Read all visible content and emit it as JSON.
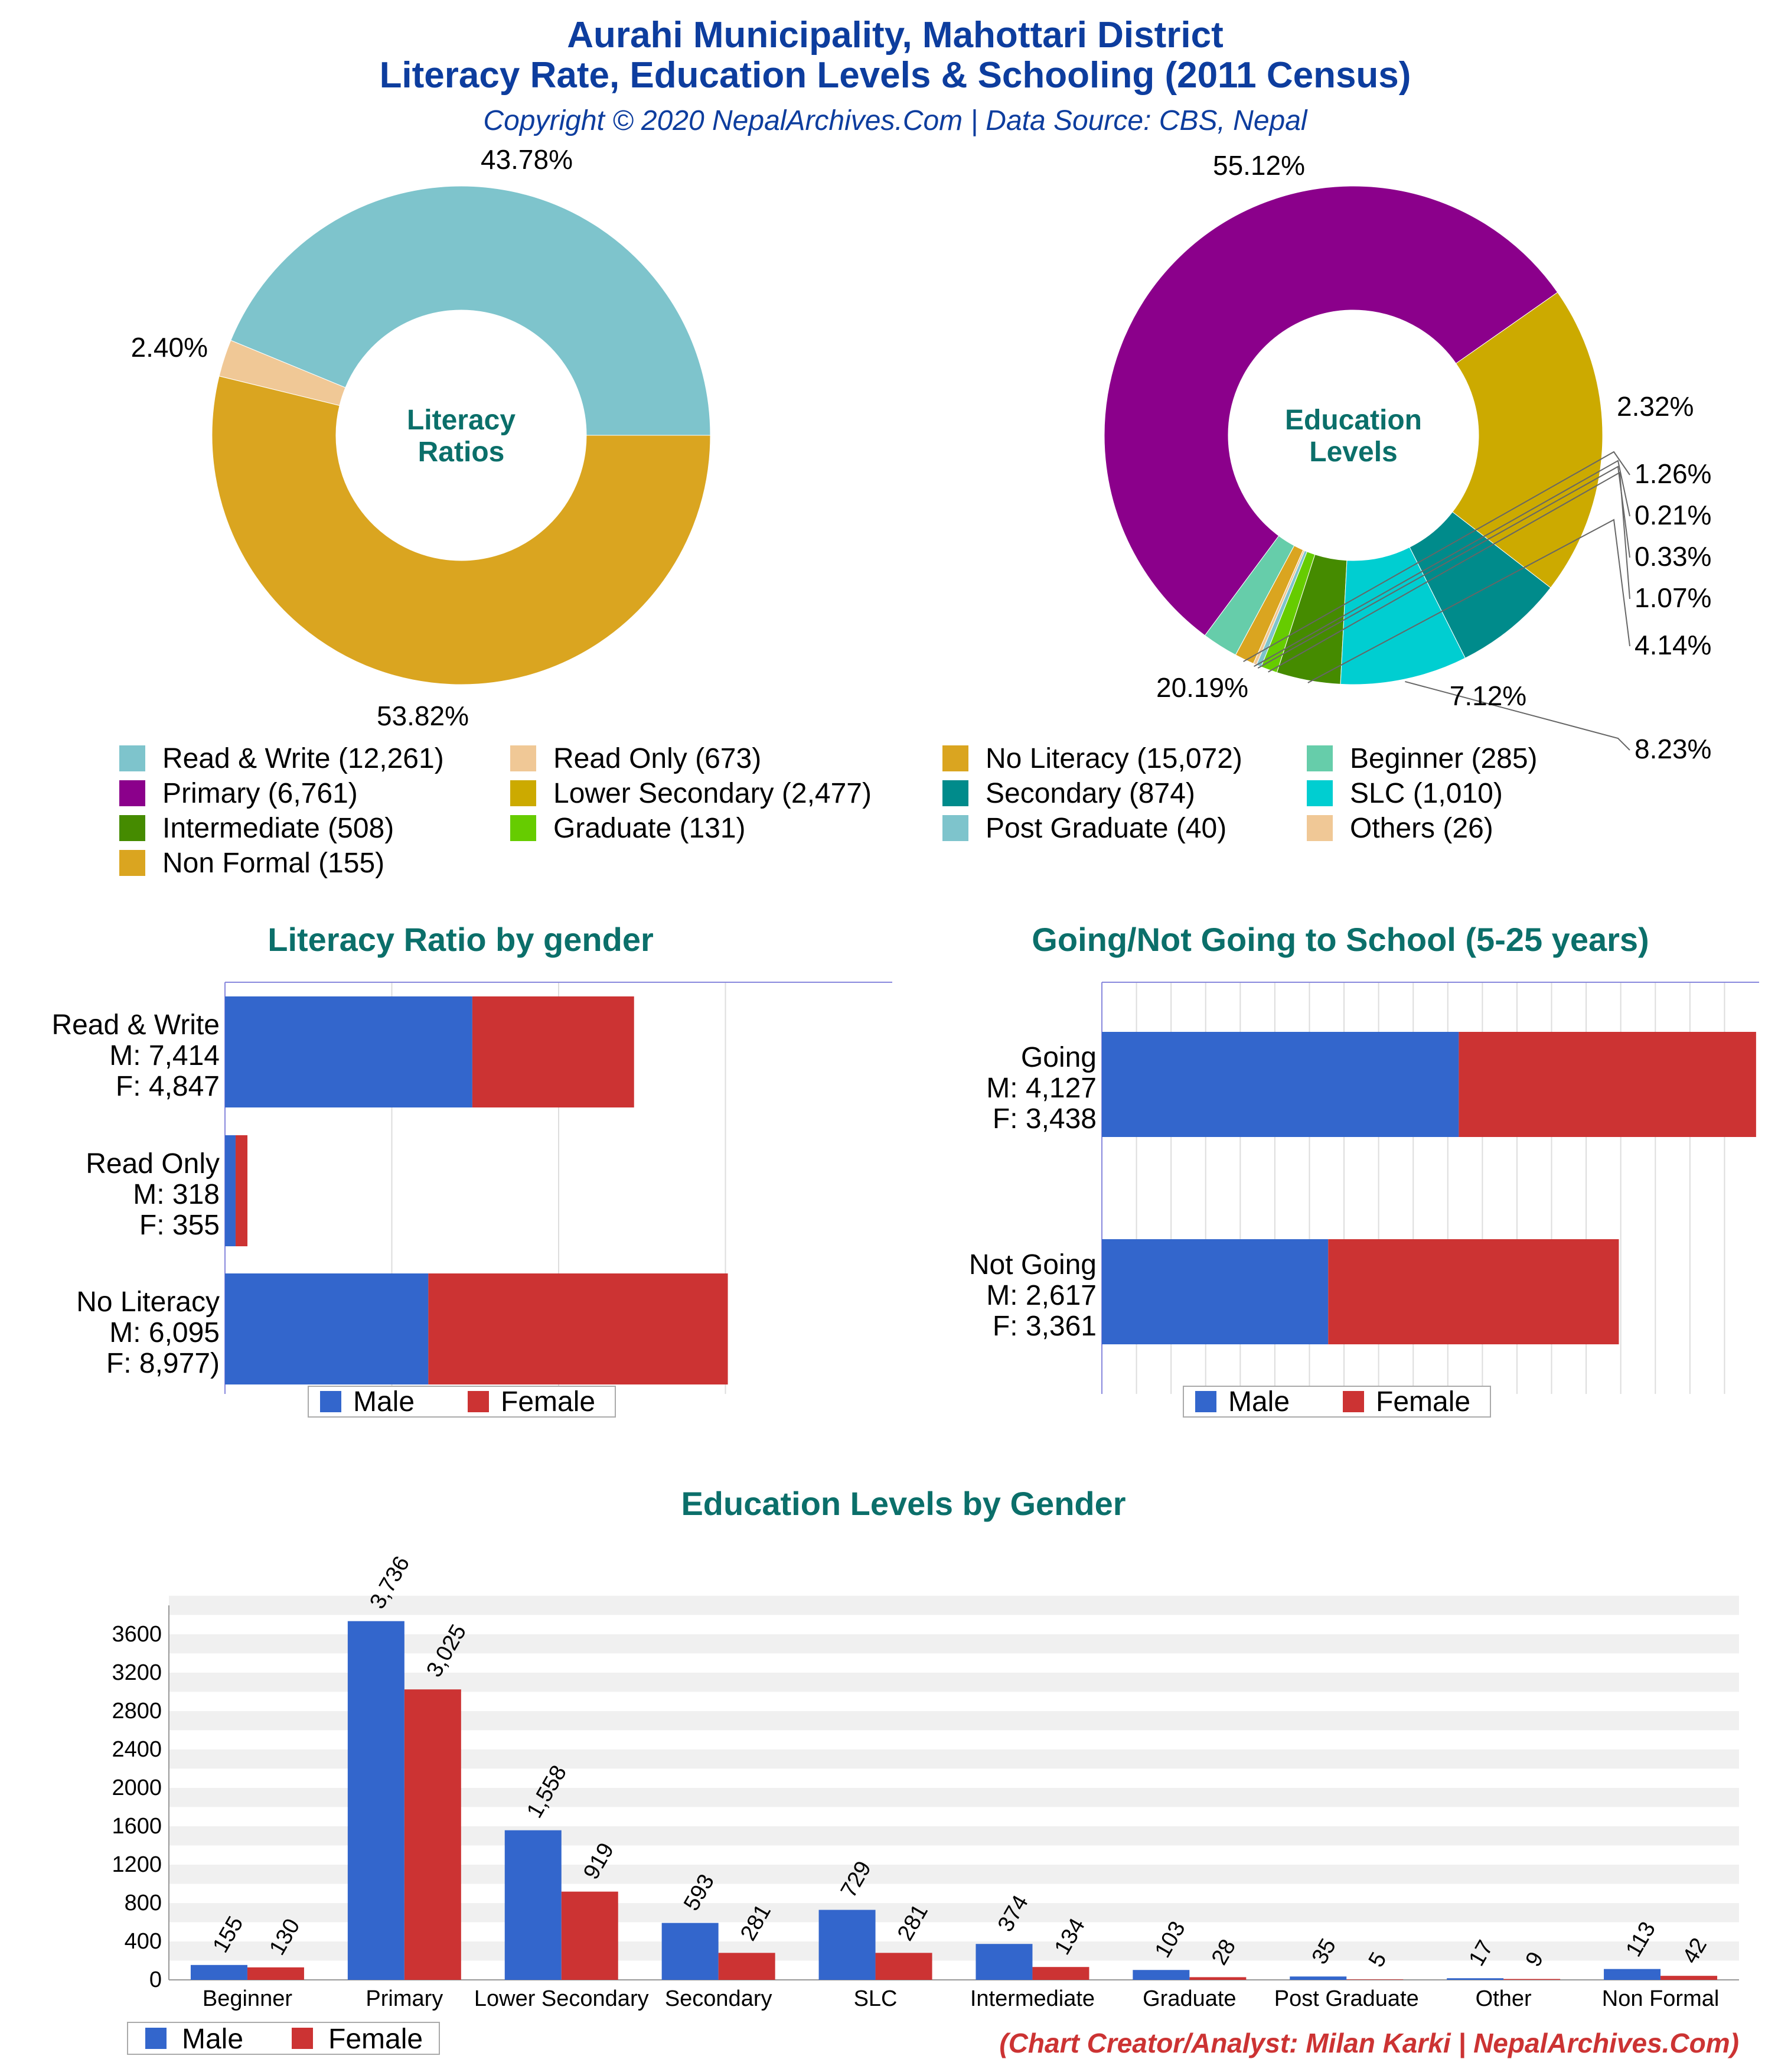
{
  "header": {
    "title_line1": "Aurahi Municipality, Mahottari District",
    "title_line2": "Literacy Rate, Education Levels & Schooling (2011 Census)",
    "copyright": "Copyright © 2020 NepalArchives.Com | Data Source: CBS, Nepal"
  },
  "footer": {
    "credit": "(Chart Creator/Analyst: Milan Karki | NepalArchives.Com)"
  },
  "colors": {
    "title": "#0d3d9e",
    "teal_heading": "#0b6f6a",
    "male": "#3366cc",
    "female": "#cc3333",
    "credit": "#cc3333"
  },
  "chart_data": [
    {
      "id": "literacy_ratios",
      "type": "pie",
      "donut": true,
      "center_label": [
        "Literacy",
        "Ratios"
      ],
      "slices": [
        {
          "label": "Read & Write",
          "value": 12261,
          "percent": "43.78%",
          "color": "#7ec4cc"
        },
        {
          "label": "Read Only",
          "value": 673,
          "percent": "2.40%",
          "color": "#f0c896"
        },
        {
          "label": "No Literacy",
          "value": 15072,
          "percent": "53.82%",
          "color": "#daa520"
        }
      ]
    },
    {
      "id": "education_levels",
      "type": "pie",
      "donut": true,
      "center_label": [
        "Education",
        "Levels"
      ],
      "slices": [
        {
          "label": "Primary",
          "value": 6761,
          "percent": "55.12%",
          "color": "#8b008b"
        },
        {
          "label": "Beginner",
          "value": 285,
          "percent": "2.32%",
          "color": "#66cdaa"
        },
        {
          "label": "Non Formal",
          "value": 155,
          "percent": "1.26%",
          "color": "#daa520"
        },
        {
          "label": "Others",
          "value": 26,
          "percent": "0.21%",
          "color": "#f0c896"
        },
        {
          "label": "Post Graduate",
          "value": 40,
          "percent": "0.33%",
          "color": "#7ec4cc"
        },
        {
          "label": "Graduate",
          "value": 131,
          "percent": "1.07%",
          "color": "#66cc00"
        },
        {
          "label": "Intermediate",
          "value": 508,
          "percent": "4.14%",
          "color": "#458b00"
        },
        {
          "label": "SLC",
          "value": 1010,
          "percent": "8.23%",
          "color": "#00ced1"
        },
        {
          "label": "Secondary",
          "value": 874,
          "percent": "7.12%",
          "color": "#008b8b"
        },
        {
          "label": "Lower Secondary",
          "value": 2477,
          "percent": "20.19%",
          "color": "#ccaa00"
        }
      ]
    },
    {
      "id": "literacy_by_gender",
      "type": "bar",
      "orientation": "horizontal",
      "stacked": true,
      "title": "Literacy Ratio by gender",
      "categories": [
        {
          "line1": "Read & Write",
          "line2": "M: 7,414",
          "line3": "F: 4,847"
        },
        {
          "line1": "Read Only",
          "line2": "M: 318",
          "line3": "F: 355"
        },
        {
          "line1": "No Literacy",
          "line2": "M: 6,095",
          "line3": "F: 8,977)"
        }
      ],
      "series": [
        {
          "name": "Male",
          "values": [
            7414,
            318,
            6095
          ]
        },
        {
          "name": "Female",
          "values": [
            4847,
            355,
            8977
          ]
        }
      ],
      "xlim": [
        0,
        20000
      ]
    },
    {
      "id": "school_attendance",
      "type": "bar",
      "orientation": "horizontal",
      "stacked": true,
      "title": "Going/Not Going to School (5-25 years)",
      "categories": [
        {
          "line1": "Going",
          "line2": "M: 4,127",
          "line3": "F: 3,438"
        },
        {
          "line1": "Not Going",
          "line2": "M: 2,617",
          "line3": "F: 3,361"
        }
      ],
      "series": [
        {
          "name": "Male",
          "values": [
            4127,
            2617
          ]
        },
        {
          "name": "Female",
          "values": [
            3438,
            3361
          ]
        }
      ],
      "xlim": [
        0,
        7600
      ]
    },
    {
      "id": "education_by_gender",
      "type": "bar",
      "title": "Education Levels by Gender",
      "categories": [
        "Beginner",
        "Primary",
        "Lower Secondary",
        "Secondary",
        "SLC",
        "Intermediate",
        "Graduate",
        "Post Graduate",
        "Other",
        "Non Formal"
      ],
      "series": [
        {
          "name": "Male",
          "values": [
            155,
            3736,
            1558,
            593,
            729,
            374,
            103,
            35,
            17,
            113
          ],
          "labels": [
            "155",
            "3,736",
            "1,558",
            "593",
            "729",
            "374",
            "103",
            "35",
            "17",
            "113"
          ]
        },
        {
          "name": "Female",
          "values": [
            130,
            3025,
            919,
            281,
            281,
            134,
            28,
            5,
            9,
            42
          ],
          "labels": [
            "130",
            "3,025",
            "919",
            "281",
            "281",
            "134",
            "28",
            "5",
            "9",
            "42"
          ]
        }
      ],
      "ylim": [
        0,
        3900
      ],
      "yticks": [
        0,
        400,
        800,
        1200,
        1600,
        2000,
        2400,
        2800,
        3200,
        3600
      ]
    }
  ]
}
